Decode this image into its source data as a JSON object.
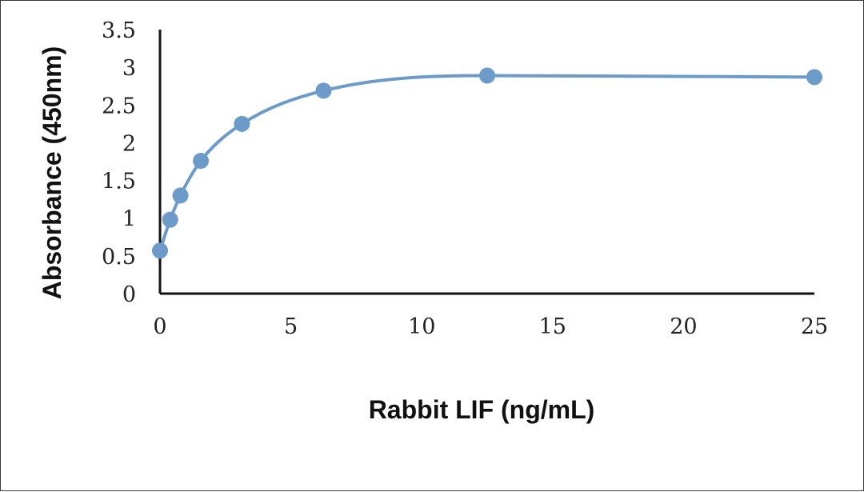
{
  "chart_data": {
    "type": "line",
    "title": "",
    "xlabel": "Rabbit LIF (ng/mL)",
    "ylabel": "Absorbance (450nm)",
    "xlim": [
      0,
      25
    ],
    "ylim": [
      0,
      3.5
    ],
    "xticks": [
      "0",
      "5",
      "10",
      "15",
      "20",
      "25"
    ],
    "yticks": [
      "0",
      "0.5",
      "1",
      "1.5",
      "2",
      "2.5",
      "3",
      "3.5"
    ],
    "grid": false,
    "smooth": true,
    "series": [
      {
        "x": [
          0,
          0.39,
          0.78,
          1.56,
          3.13,
          6.25,
          12.5,
          25
        ],
        "y": [
          0.57,
          0.98,
          1.3,
          1.76,
          2.25,
          2.69,
          2.89,
          2.87
        ]
      }
    ],
    "colors": {
      "series": "#6c9bca",
      "axis": "#111111"
    }
  }
}
